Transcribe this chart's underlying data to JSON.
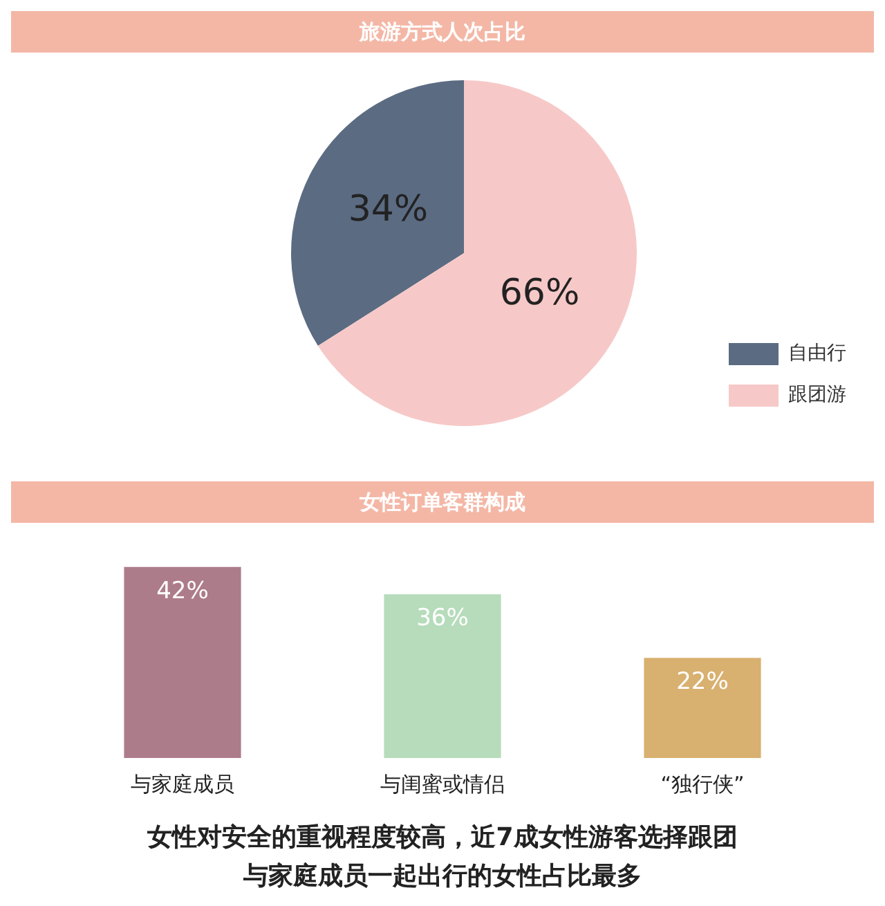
{
  "chart_data": [
    {
      "type": "pie",
      "title": "旅游方式人次占比",
      "categories": [
        "自由行",
        "跟团游"
      ],
      "values": [
        34,
        66
      ],
      "colors": [
        "#5b6b82",
        "#f6c9c8"
      ],
      "value_labels": [
        "34%",
        "66%"
      ],
      "legend": "right"
    },
    {
      "type": "bar",
      "title": "女性订单客群构成",
      "categories": [
        "与家庭成员",
        "与闺蜜或情侣",
        "“独行侠”"
      ],
      "values": [
        42,
        36,
        22
      ],
      "colors": [
        "#ad7c8a",
        "#b6dcbb",
        "#d8b070"
      ],
      "value_labels": [
        "42%",
        "36%",
        "22%"
      ],
      "annotations": [
        "女性对安全的重视程度较高，近7成女性游客选择跟团",
        "与家庭成员一起出行的女性占比最多"
      ]
    }
  ]
}
